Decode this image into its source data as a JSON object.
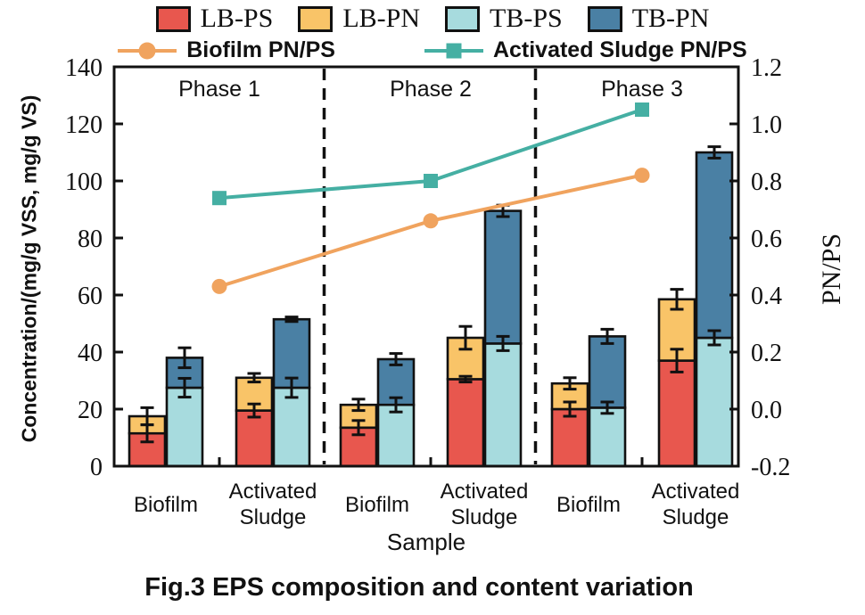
{
  "figure": {
    "caption": "Fig.3 EPS composition and content variation"
  },
  "chart_data": {
    "type": "bar",
    "stacked": true,
    "stacked_pairs": [
      [
        "LB-PS",
        "LB-PN"
      ],
      [
        "TB-PS",
        "TB-PN"
      ]
    ],
    "phases": [
      "Phase 1",
      "Phase 2",
      "Phase 3"
    ],
    "sample_labels": [
      "Biofilm",
      "Activated Sludge",
      "Biofilm",
      "Activated Sludge",
      "Biofilm",
      "Activated Sludge"
    ],
    "categories": [
      "Phase 1 Biofilm",
      "Phase 1 Activated Sludge",
      "Phase 2 Biofilm",
      "Phase 2 Activated Sludge",
      "Phase 3 Biofilm",
      "Phase 3 Activated Sludge"
    ],
    "xlabel": "Sample",
    "left_axis": {
      "label": "Concentration/(mg/g VSS, mg/g VS)",
      "min": 0,
      "max": 140,
      "tick_labels": [
        "0",
        "20",
        "40",
        "60",
        "80",
        "100",
        "120",
        "140"
      ]
    },
    "right_axis": {
      "label": "PN/PS",
      "min": -0.2,
      "max": 1.2,
      "tick_labels": [
        "-0.2",
        "0.0",
        "0.2",
        "0.4",
        "0.6",
        "0.8",
        "1.0",
        "1.2"
      ]
    },
    "bar_series": [
      {
        "name": "LB-PS",
        "color": "#E8574E",
        "values": [
          11.5,
          19.5,
          13.5,
          30.5,
          20,
          37
        ],
        "errors": [
          3,
          2.3,
          2.5,
          1,
          2.5,
          4
        ]
      },
      {
        "name": "LB-PN",
        "color": "#F9C468",
        "values": [
          6,
          11.5,
          8,
          14.5,
          9,
          21.5
        ],
        "errors": [
          3,
          1.5,
          2,
          4,
          2,
          3.5
        ]
      },
      {
        "name": "TB-PS",
        "color": "#A7DBDE",
        "values": [
          27.5,
          27.5,
          21.5,
          43,
          20.5,
          45
        ],
        "errors": [
          3.3,
          3.4,
          2.5,
          2.5,
          2,
          2.5
        ]
      },
      {
        "name": "TB-PN",
        "color": "#4A80A4",
        "values": [
          10.5,
          24,
          16,
          46.5,
          25,
          65
        ],
        "errors": [
          3.5,
          0.8,
          2,
          2,
          2.5,
          2
        ]
      }
    ],
    "line_series": [
      {
        "name": "Biofilm PN/PS",
        "color": "#F0A35E",
        "marker": "circle",
        "values": [
          0.43,
          0.66,
          0.82
        ]
      },
      {
        "name": "Activated Sludge PN/PS",
        "color": "#45AFA3",
        "marker": "square",
        "values": [
          0.74,
          0.8,
          1.05
        ]
      }
    ],
    "ink_color": "#111111",
    "grid": false,
    "legend_position": "top"
  }
}
